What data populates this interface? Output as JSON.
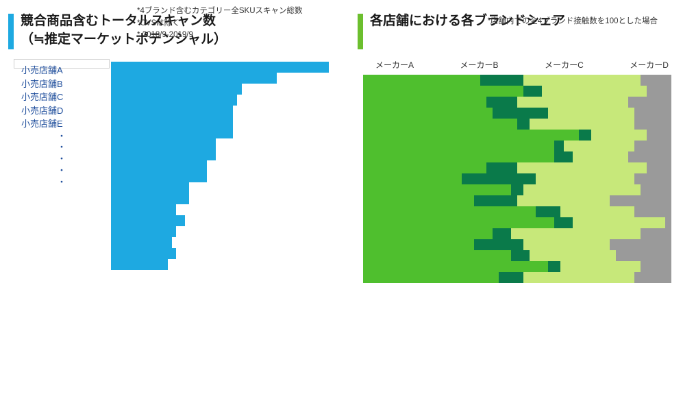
{
  "left": {
    "accent": "#1ea9e1",
    "title_line1": "競合商品含むトータルスキャン数",
    "title_line2": "（≒推定マーケットポテンシャル）",
    "y_labels": [
      "小売店舗A",
      "小売店舗B",
      "小売店舗C",
      "小売店舗D",
      "小売店舗E",
      "・",
      "・",
      "・",
      "・",
      "・"
    ],
    "bar_chart": {
      "type": "bar-horizontal",
      "bar_color": "#1ea9e1",
      "xlim": [
        0,
        100
      ],
      "values": [
        100,
        76,
        60,
        58,
        56,
        56,
        56,
        48,
        48,
        44,
        44,
        36,
        36,
        30,
        34,
        30,
        28,
        30,
        26
      ]
    },
    "footnotes": [
      "*4ブランド含むカテゴリー全SKUスキャン総数",
      "*CVSは除く",
      "* 2018/9-2019/9"
    ]
  },
  "right": {
    "accent": "#6cbf2e",
    "title": "各店舗における各ブランドシェア",
    "legend": [
      "メーカーA",
      "メーカーB",
      "メーカーC",
      "メーカーD"
    ],
    "stacked_chart": {
      "type": "stacked-bar-horizontal",
      "colors": [
        "#4fbf2e",
        "#0a7a4a",
        "#c7e87a",
        "#9a9a9a"
      ],
      "xlim": [
        0,
        100
      ],
      "rows": [
        [
          38,
          14,
          38,
          10
        ],
        [
          52,
          6,
          34,
          8
        ],
        [
          40,
          10,
          36,
          14
        ],
        [
          42,
          18,
          28,
          12
        ],
        [
          50,
          4,
          34,
          12
        ],
        [
          70,
          4,
          18,
          8
        ],
        [
          62,
          3,
          23,
          12
        ],
        [
          62,
          6,
          18,
          14
        ],
        [
          40,
          10,
          42,
          8
        ],
        [
          32,
          24,
          32,
          12
        ],
        [
          48,
          4,
          38,
          10
        ],
        [
          36,
          14,
          30,
          20
        ],
        [
          56,
          8,
          24,
          12
        ],
        [
          62,
          6,
          30,
          2
        ],
        [
          42,
          6,
          42,
          10
        ],
        [
          36,
          16,
          28,
          20
        ],
        [
          48,
          6,
          28,
          18
        ],
        [
          60,
          4,
          26,
          10
        ],
        [
          44,
          8,
          36,
          12
        ]
      ]
    },
    "footnote": "*店舗内での全4ブランド接触数を100とした場合"
  }
}
